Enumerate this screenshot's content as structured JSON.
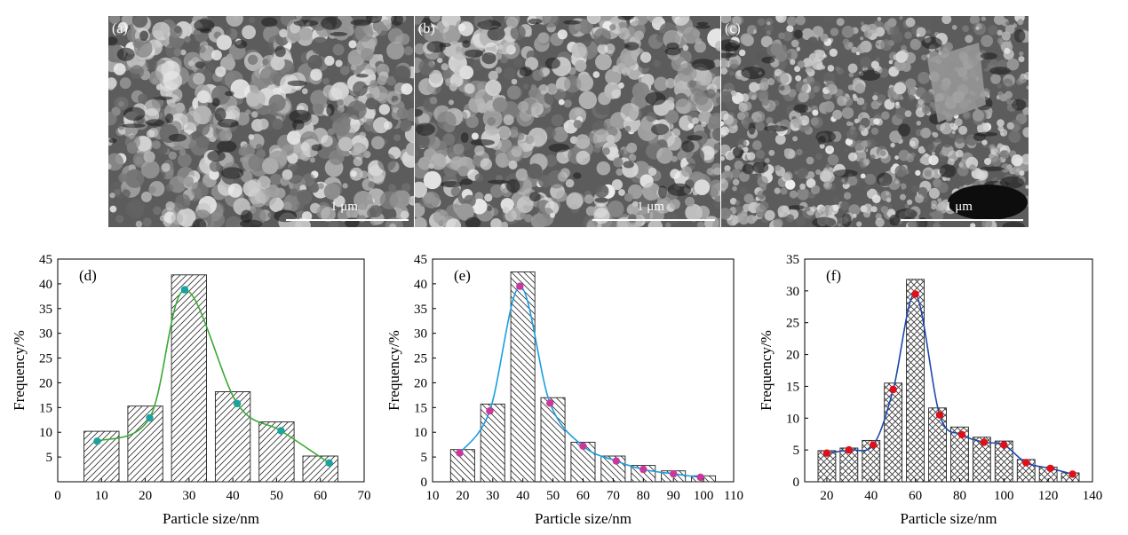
{
  "sem_panels": [
    {
      "label": "(a)",
      "scale_label": "1 μm"
    },
    {
      "label": "(b)",
      "scale_label": "1 μm"
    },
    {
      "label": "(c)",
      "scale_label": "1 μm"
    }
  ],
  "chart_data": [
    {
      "type": "bar",
      "panel_label": "(d)",
      "xlabel": "Particle size/nm",
      "ylabel": "Frequency/%",
      "xlim": [
        0,
        70
      ],
      "ylim": [
        0,
        45
      ],
      "x_ticks": [
        0,
        10,
        20,
        30,
        40,
        50,
        60,
        70
      ],
      "y_ticks": [
        5,
        10,
        15,
        20,
        25,
        30,
        35,
        40,
        45
      ],
      "categories": [
        10,
        20,
        30,
        40,
        50,
        60
      ],
      "values": [
        10.2,
        15.3,
        41.8,
        18.2,
        12.1,
        5.2
      ],
      "fit_points": {
        "x": [
          9,
          21,
          29,
          41,
          51,
          62
        ],
        "y": [
          8.2,
          12.9,
          38.8,
          15.8,
          10.3,
          3.8
        ]
      },
      "hatch": "diagonal-forward",
      "curve_color": "#3aa935",
      "marker_color": "#1aa3a0"
    },
    {
      "type": "bar",
      "panel_label": "(e)",
      "xlabel": "Particle size/nm",
      "ylabel": "Frequency/%",
      "xlim": [
        10,
        110
      ],
      "ylim": [
        0,
        45
      ],
      "x_ticks": [
        10,
        20,
        30,
        40,
        50,
        60,
        70,
        80,
        90,
        100,
        110
      ],
      "y_ticks": [
        0,
        5,
        10,
        15,
        20,
        25,
        30,
        35,
        40,
        45
      ],
      "categories": [
        20,
        30,
        40,
        50,
        60,
        70,
        80,
        90,
        100
      ],
      "values": [
        6.5,
        15.7,
        42.4,
        17.0,
        8.0,
        5.2,
        3.3,
        2.2,
        1.2
      ],
      "fit_points": {
        "x": [
          19,
          29,
          39,
          49,
          60,
          71,
          80,
          90,
          99
        ],
        "y": [
          5.8,
          14.3,
          39.5,
          15.9,
          7.2,
          4.2,
          2.5,
          1.6,
          0.9
        ]
      },
      "hatch": "diagonal-back",
      "curve_color": "#1a9ee0",
      "marker_color": "#c8399b"
    },
    {
      "type": "bar",
      "panel_label": "(f)",
      "xlabel": "Particle size/nm",
      "ylabel": "Frequency/%",
      "xlim": [
        10,
        140
      ],
      "ylim": [
        0,
        35
      ],
      "x_ticks": [
        20,
        40,
        60,
        80,
        100,
        120,
        140
      ],
      "y_ticks": [
        0,
        5,
        10,
        15,
        20,
        25,
        30,
        35
      ],
      "categories": [
        20,
        30,
        40,
        50,
        60,
        70,
        80,
        90,
        100,
        110,
        120,
        130
      ],
      "values": [
        4.9,
        5.3,
        6.5,
        15.5,
        31.8,
        11.6,
        8.6,
        7.0,
        6.4,
        3.5,
        2.3,
        1.4
      ],
      "fit_points": {
        "x": [
          20,
          30,
          41,
          50,
          60,
          71,
          81,
          91,
          100,
          110,
          121,
          131
        ],
        "y": [
          4.5,
          5.0,
          5.8,
          14.5,
          29.5,
          10.5,
          7.4,
          6.2,
          5.8,
          3.0,
          2.1,
          1.2
        ]
      },
      "hatch": "crosshatch",
      "curve_color": "#1f4aa8",
      "marker_color": "#e0101a"
    }
  ]
}
